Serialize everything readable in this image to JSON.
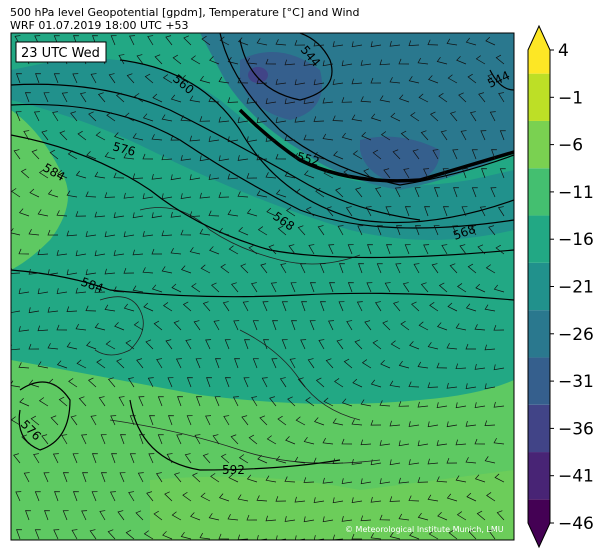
{
  "header": {
    "line1": "500 hPa level Geopotential [gpdm], Temperature [°C] and Wind",
    "line2": "WRF 01.07.2019 18:00 UTC +53"
  },
  "time_badge": "23 UTC Wed",
  "credit": "© Meteorological Institute Munich, LMU",
  "colorbar": {
    "levels": [
      -46,
      -41,
      -36,
      -31,
      -26,
      -21,
      -16,
      -11,
      -6,
      -1,
      4
    ],
    "tick_labels": [
      "4",
      "−1",
      "−6",
      "−11",
      "−16",
      "−21",
      "−26",
      "−31",
      "−36",
      "−41",
      "−46"
    ],
    "colors": [
      "#440154",
      "#482475",
      "#414487",
      "#355f8d",
      "#2a788e",
      "#21918c",
      "#22a884",
      "#44bf70",
      "#7ad151",
      "#bddf26",
      "#fde725"
    ]
  },
  "contours": {
    "labels": [
      "560",
      "544",
      "544",
      "576",
      "584",
      "552",
      "568",
      "568",
      "584",
      "576",
      "592"
    ]
  }
}
